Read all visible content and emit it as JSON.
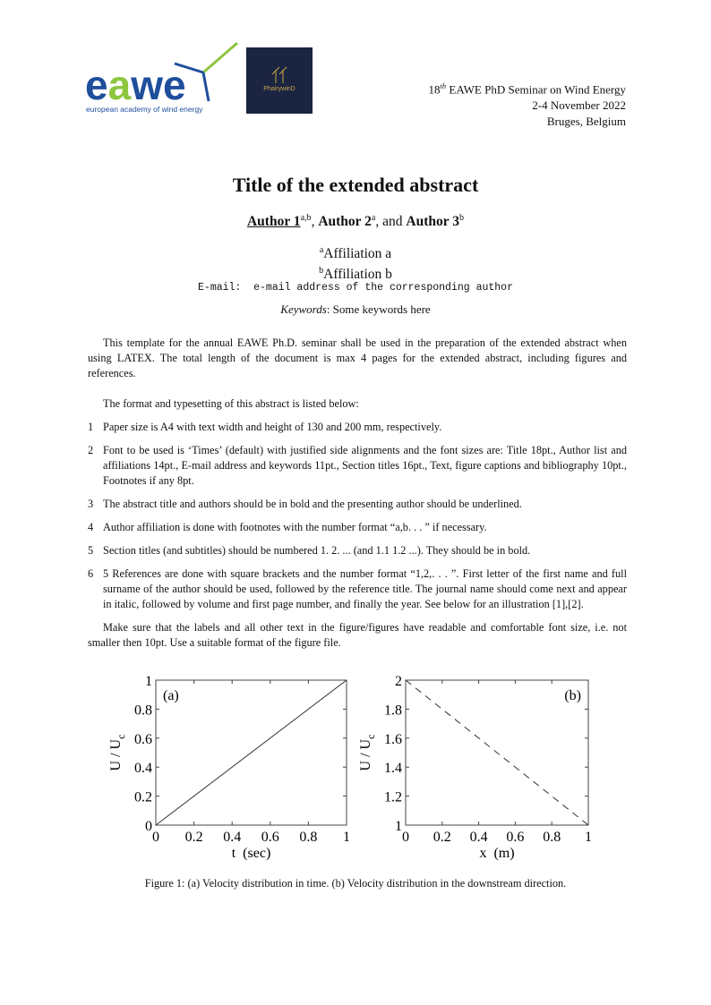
{
  "header": {
    "logo_eawe": {
      "text": "eawe",
      "subtitle": "european academy of wind energy",
      "colors": {
        "blue": "#1f4e9c",
        "green": "#8dc63f"
      }
    },
    "logo_phairywind": {
      "text": "PhairywinD",
      "bg": "#1b2440"
    },
    "seminar_num": "18",
    "seminar_sup": "th",
    "seminar_rest": " EAWE PhD Seminar on Wind Energy",
    "dates": "2-4 November 2022",
    "location": "Bruges, Belgium"
  },
  "title": "Title of the extended abstract",
  "authors": {
    "a1": "Author 1",
    "a1_sup": "a,b",
    "sep1": ", ",
    "a2": "Author 2",
    "a2_sup": "a",
    "sep2": ", and ",
    "a3": "Author 3",
    "a3_sup": "b"
  },
  "affiliations": [
    {
      "sup": "a",
      "text": "Affiliation a"
    },
    {
      "sup": "b",
      "text": "Affiliation b"
    }
  ],
  "email_label": "E-mail:  e-mail address of the corresponding author",
  "keywords_label": "Keywords",
  "keywords_text": ": Some keywords here",
  "intro": "This template for the annual EAWE Ph.D. seminar shall be used in the preparation of the extended abstract when using LATEX. The total length of the document is max 4 pages for the extended abstract, including figures and references.",
  "format_intro": "The format and typesetting of this abstract is listed below:",
  "list": [
    {
      "num": "1",
      "text": "Paper size is A4 with text width and height of 130 and 200 mm, respectively."
    },
    {
      "num": "2",
      "text": "Font to be used is ‘Times’ (default) with justified side alignments and the font sizes are: Title 18pt., Author list and affiliations 14pt., E-mail address and keywords 11pt., Section titles 16pt., Text, figure captions and bibliography 10pt., Footnotes if any 8pt."
    },
    {
      "num": "3",
      "text": "The abstract title and authors should be in bold and the presenting author should be underlined."
    },
    {
      "num": "4",
      "text": "Author affiliation is done with footnotes with the number format “a,b. . . ” if necessary."
    },
    {
      "num": "5",
      "text": "Section titles (and subtitles) should be numbered 1. 2. ... (and 1.1 1.2 ...). They should be in bold."
    },
    {
      "num": "6",
      "text": "5 References are done with square brackets and the number format “1,2,. . . ”. First letter of the first name and full surname of the author should be used, followed by the reference title. The journal name should come next and appear in italic, followed by volume and first page number, and finally the year. See below for an illustration [1],[2]."
    }
  ],
  "figure_note": "Make sure that the labels and all other text in the figure/figures have readable and comfortable font size, i.e. not smaller then 10pt. Use a suitable format of the figure file.",
  "chart_data": [
    {
      "type": "line",
      "panel_label": "(a)",
      "xlabel": "t  (sec)",
      "ylabel": "U / U",
      "ylabel_sub": "c",
      "xlim": [
        0,
        1
      ],
      "ylim": [
        0,
        1
      ],
      "xticks": [
        "0",
        "0.2",
        "0.4",
        "0.6",
        "0.8",
        "1"
      ],
      "yticks": [
        "0",
        "0.2",
        "0.4",
        "0.6",
        "0.8",
        "1"
      ],
      "series": [
        {
          "x": [
            0,
            1
          ],
          "y": [
            0,
            1
          ],
          "style": "solid"
        }
      ],
      "grid": false
    },
    {
      "type": "line",
      "panel_label": "(b)",
      "xlabel": "x  (m)",
      "ylabel": "U / U",
      "ylabel_sub": "c",
      "xlim": [
        0,
        1
      ],
      "ylim": [
        1,
        2
      ],
      "xticks": [
        "0",
        "0.2",
        "0.4",
        "0.6",
        "0.8",
        "1"
      ],
      "yticks": [
        "1",
        "1.2",
        "1.4",
        "1.6",
        "1.8",
        "2"
      ],
      "series": [
        {
          "x": [
            0,
            1
          ],
          "y": [
            2,
            1
          ],
          "style": "dashed"
        }
      ],
      "grid": false
    }
  ],
  "caption": "Figure 1: (a) Velocity distribution in time. (b) Velocity distribution in the downstream direction."
}
